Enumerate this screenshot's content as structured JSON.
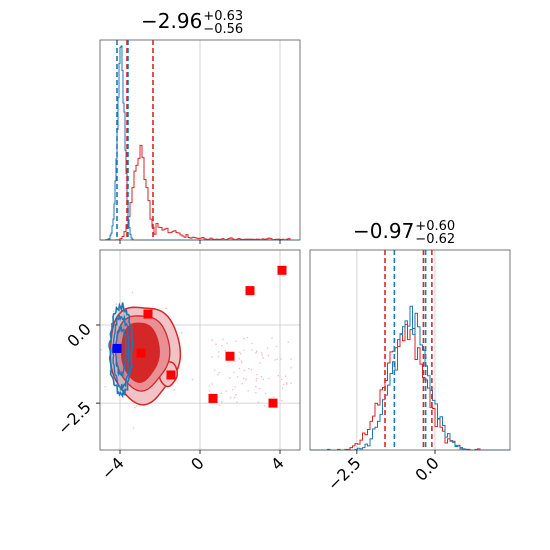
{
  "chart_data": [
    {
      "type": "histogram",
      "panel": "p1-marginal",
      "title": {
        "value": "−2.96",
        "plus": "+0.63",
        "minus": "−0.56"
      },
      "xlim": [
        -5,
        5
      ],
      "grid": true,
      "series": [
        {
          "color": "#1f77b4",
          "quantile_lines": [
            -4.15,
            -3.6
          ]
        },
        {
          "color": "#d62728",
          "quantile_lines": [
            -3.65,
            -2.35
          ]
        }
      ]
    },
    {
      "type": "scatter",
      "panel": "p1-vs-p2",
      "xlim": [
        -5,
        5
      ],
      "ylim": [
        -4,
        2.4
      ],
      "xticks": [
        "−4",
        "0",
        "4"
      ],
      "yticks": [
        "0.0",
        "−2.5"
      ],
      "xtick_values": [
        -4,
        0,
        4
      ],
      "ytick_values": [
        0.0,
        -2.5
      ],
      "grid": true,
      "red_squares": [
        [
          4.1,
          1.75
        ],
        [
          2.5,
          1.1
        ],
        [
          -2.6,
          0.35
        ],
        [
          -2.95,
          -0.9
        ],
        [
          -1.45,
          -1.6
        ],
        [
          1.5,
          -1.0
        ],
        [
          0.65,
          -2.35
        ],
        [
          3.65,
          -2.5
        ]
      ],
      "blue_squares": [
        [
          -4.15,
          -0.75
        ]
      ]
    },
    {
      "type": "histogram",
      "panel": "p2-marginal",
      "title": {
        "value": "−0.97",
        "plus": "+0.60",
        "minus": "−0.62"
      },
      "xlim": [
        -4,
        2.4
      ],
      "xticks": [
        "−2.5",
        "0.0"
      ],
      "xtick_values": [
        -2.5,
        0.0
      ],
      "grid": true,
      "series": [
        {
          "color": "#1f77b4",
          "quantile_lines": [
            -1.3,
            -0.3
          ]
        },
        {
          "color": "#d62728",
          "quantile_lines": [
            -1.6,
            -0.37,
            -0.1
          ]
        }
      ]
    }
  ]
}
